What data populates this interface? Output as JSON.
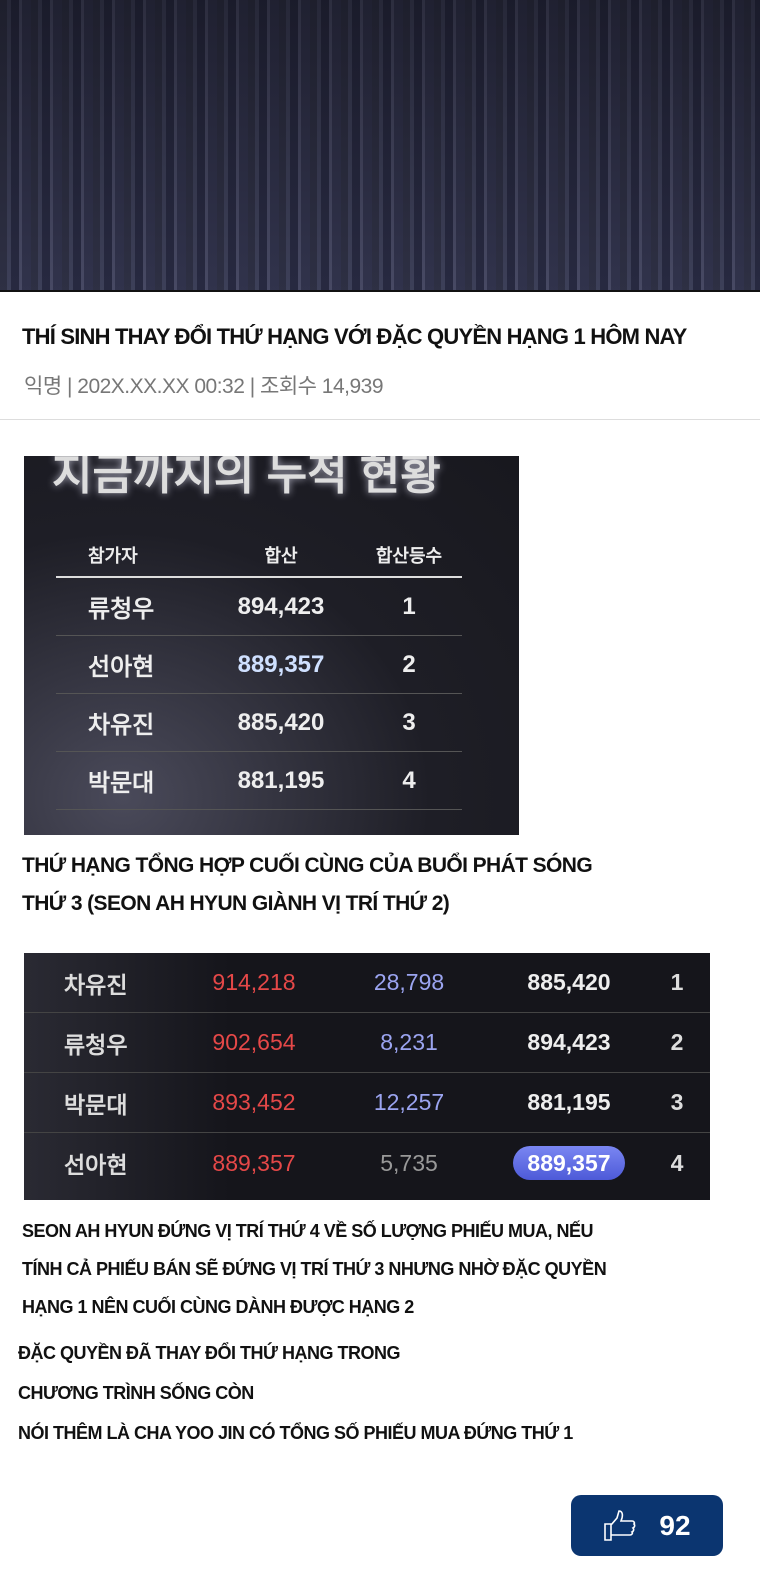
{
  "post": {
    "title": "THÍ SINH THAY ĐỔI THỨ HẠNG VỚI ĐẶC QUYỀN HẠNG 1 HÔM NAY",
    "meta": "익명 | 202X.XX.XX 00:32 | 조회수 14,939"
  },
  "image1": {
    "heading": "지금까지의 누적 현황",
    "headers": [
      "참가자",
      "합산",
      "합산등수"
    ],
    "rows": [
      [
        "류청우",
        "894,423",
        "1"
      ],
      [
        "선아현",
        "889,357",
        "2"
      ],
      [
        "차유진",
        "885,420",
        "3"
      ],
      [
        "박문대",
        "881,195",
        "4"
      ]
    ]
  },
  "caption1": [
    "THỨ HẠNG TỔNG HỢP CUỐI CÙNG CỦA BUỔI PHÁT SÓNG",
    "THỨ 3 (SEON AH HYUN GIÀNH VỊ TRÍ THỨ 2)"
  ],
  "image2": {
    "rows": [
      [
        "차유진",
        "914,218",
        "28,798",
        "885,420",
        "1"
      ],
      [
        "류청우",
        "902,654",
        "8,231",
        "894,423",
        "2"
      ],
      [
        "박문대",
        "893,452",
        "12,257",
        "881,195",
        "3"
      ],
      [
        "선아현",
        "889,357",
        "5,735",
        "889,357",
        "4"
      ]
    ]
  },
  "caption2": [
    "SEON AH HYUN ĐỨNG VỊ TRÍ THỨ 4 VỀ SỐ LƯỢNG PHIẾU MUA, NẾU",
    "TÍNH CẢ PHIẾU BÁN SẼ ĐỨNG VỊ TRÍ THỨ 3 NHƯNG NHỜ ĐẶC QUYỀN",
    "HẠNG 1 NÊN CUỐI CÙNG DÀNH ĐƯỢC HẠNG 2"
  ],
  "caption3": [
    "ĐẶC QUYỀN ĐÃ THAY ĐỔI THỨ HẠNG TRONG",
    "CHƯƠNG TRÌNH SỐNG CÒN",
    "NÓI THÊM LÀ CHA YOO JIN CÓ TỔNG SỐ PHIẾU MUA ĐỨNG THỨ 1"
  ],
  "like": {
    "icon": "thumbs-up-icon",
    "count": "92",
    "color": "#0b3570"
  }
}
